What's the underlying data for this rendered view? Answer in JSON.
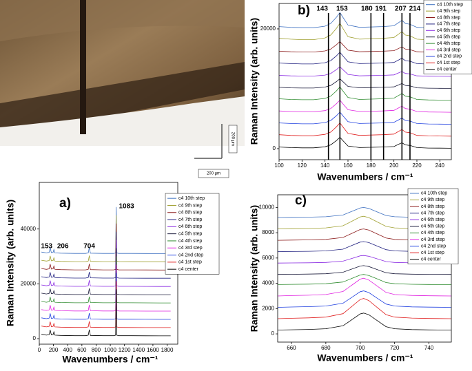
{
  "image": {
    "scale_labels": [
      "200 µm",
      "200 µm"
    ]
  },
  "chart_data": [
    {
      "type": "line",
      "panel_label": "a)",
      "xlabel": "Wavenumbers / cm⁻¹",
      "ylabel": "Raman Intensity (arb. units)",
      "xlim": [
        0,
        1950
      ],
      "ylim": [
        -2000,
        57000
      ],
      "xticks": [
        0,
        200,
        400,
        600,
        800,
        1000,
        1200,
        1400,
        1600,
        1800
      ],
      "yticks": [
        0,
        20000,
        40000
      ],
      "peak_labels": [
        153,
        206,
        704,
        1083
      ],
      "x": [
        30,
        100,
        140,
        153,
        170,
        195,
        206,
        220,
        300,
        500,
        650,
        690,
        704,
        720,
        900,
        1050,
        1075,
        1083,
        1090,
        1120,
        1300,
        1500,
        1700,
        1850
      ],
      "series": [
        {
          "name": "c4 10th step",
          "color": "#3c6fc0",
          "values": [
            31600,
            31300,
            31500,
            33200,
            31400,
            31500,
            32500,
            31300,
            31200,
            31100,
            31100,
            31300,
            33300,
            31200,
            31100,
            31100,
            31300,
            48000,
            31300,
            31100,
            31080,
            31060,
            31050,
            31050
          ]
        },
        {
          "name": "c4 9th step",
          "color": "#a0a030",
          "values": [
            28600,
            28300,
            28500,
            30200,
            28400,
            28500,
            29500,
            28300,
            28200,
            28100,
            28100,
            28300,
            30300,
            28200,
            28100,
            28100,
            28300,
            45000,
            28300,
            28100,
            28080,
            28060,
            28050,
            28050
          ]
        },
        {
          "name": "c4 8th step",
          "color": "#8b1a1a",
          "values": [
            25600,
            25300,
            25500,
            27200,
            25400,
            25500,
            26500,
            25300,
            25200,
            25100,
            25100,
            25300,
            27300,
            25200,
            25100,
            25100,
            25300,
            42000,
            25300,
            25100,
            25080,
            25060,
            25050,
            25050
          ]
        },
        {
          "name": "c4 7th step",
          "color": "#202080",
          "values": [
            22600,
            22300,
            22500,
            24200,
            22400,
            22500,
            23500,
            22300,
            22200,
            22100,
            22100,
            22300,
            24300,
            22200,
            22100,
            22100,
            22300,
            39000,
            22300,
            22100,
            22080,
            22060,
            22050,
            22050
          ]
        },
        {
          "name": "c4 6th step",
          "color": "#8a2be2",
          "values": [
            19600,
            19300,
            19500,
            21200,
            19400,
            19500,
            20500,
            19300,
            19200,
            19100,
            19100,
            19300,
            21300,
            19200,
            19100,
            19100,
            19300,
            36000,
            19300,
            19100,
            19080,
            19060,
            19050,
            19050
          ]
        },
        {
          "name": "c4 5th step",
          "color": "#1a1a3a",
          "values": [
            16600,
            16300,
            16500,
            18200,
            16400,
            16500,
            17500,
            16300,
            16200,
            16100,
            16100,
            16300,
            18300,
            16200,
            16100,
            16100,
            16300,
            33000,
            16300,
            16100,
            16080,
            16060,
            16050,
            16050
          ]
        },
        {
          "name": "c4 4th step",
          "color": "#2e8b2e",
          "values": [
            13600,
            13300,
            13500,
            15200,
            13400,
            13500,
            14500,
            13300,
            13200,
            13100,
            13100,
            13300,
            15300,
            13200,
            13100,
            13100,
            13300,
            30000,
            13300,
            13100,
            13080,
            13060,
            13050,
            13050
          ]
        },
        {
          "name": "c4 3rd step",
          "color": "#e020e0",
          "values": [
            10600,
            10300,
            10500,
            12200,
            10400,
            10500,
            11500,
            10300,
            10200,
            10100,
            10100,
            10300,
            12300,
            10200,
            10100,
            10100,
            10300,
            27000,
            10300,
            10100,
            10080,
            10060,
            10050,
            10050
          ]
        },
        {
          "name": "c4 2nd step",
          "color": "#2040e0",
          "values": [
            7600,
            7300,
            7500,
            9200,
            7400,
            7500,
            8500,
            7300,
            7200,
            7100,
            7100,
            7300,
            9300,
            7200,
            7100,
            7100,
            7300,
            24000,
            7300,
            7100,
            7080,
            7060,
            7050,
            7050
          ]
        },
        {
          "name": "c4 1st step",
          "color": "#e02020",
          "values": [
            4600,
            4300,
            4500,
            6200,
            4400,
            4500,
            5500,
            4300,
            4200,
            4100,
            4100,
            4300,
            6300,
            4200,
            4100,
            4100,
            4300,
            21000,
            4300,
            4100,
            4080,
            4060,
            4050,
            4050
          ]
        },
        {
          "name": "c4 center",
          "color": "#000000",
          "values": [
            1600,
            1300,
            1500,
            3200,
            1400,
            1500,
            2500,
            1300,
            1200,
            1100,
            1100,
            1300,
            3300,
            1200,
            1100,
            1100,
            1300,
            18000,
            1300,
            1100,
            1080,
            1060,
            1050,
            1050
          ]
        }
      ]
    },
    {
      "type": "line",
      "panel_label": "b)",
      "xlabel": "Wavenumbers / cm⁻¹",
      "ylabel": "Raman Intensity (arb. units)",
      "xlim": [
        100,
        250
      ],
      "ylim": [
        -1840,
        24250
      ],
      "xticks": [
        100,
        120,
        140,
        160,
        180,
        200,
        220,
        240
      ],
      "yticks": [
        0,
        20000
      ],
      "vlines": [
        143,
        153,
        180,
        191,
        207,
        214
      ],
      "x": [
        100,
        110,
        120,
        130,
        140,
        145,
        150,
        153,
        156,
        160,
        170,
        180,
        190,
        200,
        205,
        207,
        210,
        214,
        220,
        230,
        240,
        250
      ],
      "series": [
        {
          "name": "c4 10th step",
          "color": "#3c6fc0",
          "values": [
            20390,
            20260,
            20195,
            20195,
            20455,
            20910,
            21950,
            22730,
            21820,
            20650,
            20260,
            20325,
            20390,
            20520,
            21170,
            21430,
            20910,
            20780,
            20260,
            20156,
            20130,
            20104
          ]
        },
        {
          "name": "c4 9th step",
          "color": "#a0a030",
          "values": [
            18420,
            18280,
            18210,
            18210,
            18490,
            18980,
            20100,
            20940,
            19960,
            18700,
            18280,
            18350,
            18420,
            18560,
            19260,
            19540,
            18980,
            18840,
            18280,
            18168,
            18140,
            18112
          ]
        },
        {
          "name": "c4 8th step",
          "color": "#8b1a1a",
          "values": [
            16270,
            16180,
            16135,
            16135,
            16315,
            16630,
            17350,
            17890,
            17260,
            16450,
            16180,
            16225,
            16270,
            16360,
            16810,
            16990,
            16630,
            16540,
            16180,
            16108,
            16090,
            16072
          ]
        },
        {
          "name": "c4 7th step",
          "color": "#202080",
          "values": [
            14300,
            14200,
            14150,
            14150,
            14350,
            14700,
            15500,
            16100,
            15400,
            14500,
            14200,
            14250,
            14300,
            14400,
            14900,
            15100,
            14700,
            14600,
            14200,
            14120,
            14100,
            14080
          ]
        },
        {
          "name": "c4 6th step",
          "color": "#8a2be2",
          "values": [
            12240,
            12160,
            12120,
            12120,
            12280,
            12560,
            13200,
            13680,
            13120,
            12400,
            12160,
            12200,
            12240,
            12320,
            12720,
            12880,
            12560,
            12480,
            12160,
            12096,
            12080,
            12064
          ]
        },
        {
          "name": "c4 5th step",
          "color": "#1a1a3a",
          "values": [
            10240,
            10160,
            10120,
            10120,
            10280,
            10560,
            11200,
            11680,
            11120,
            10400,
            10160,
            10200,
            10240,
            10320,
            10720,
            10880,
            10560,
            10480,
            10160,
            10096,
            10080,
            10064
          ]
        },
        {
          "name": "c4 4th step",
          "color": "#2e8b2e",
          "values": [
            8330,
            8220,
            8165,
            8165,
            8385,
            8770,
            9650,
            10310,
            9540,
            8550,
            8220,
            8275,
            8330,
            8440,
            8990,
            9210,
            8770,
            8660,
            8220,
            8132,
            8110,
            8088
          ]
        },
        {
          "name": "c4 3rd step",
          "color": "#e020e0",
          "values": [
            6300,
            6200,
            6150,
            6150,
            6350,
            6700,
            7500,
            8100,
            7400,
            6500,
            6200,
            6250,
            6300,
            6400,
            6900,
            7100,
            6700,
            6600,
            6200,
            6120,
            6100,
            6080
          ]
        },
        {
          "name": "c4 2nd step",
          "color": "#2040e0",
          "values": [
            4300,
            4200,
            4150,
            4150,
            4350,
            4700,
            5500,
            6100,
            5400,
            4500,
            4200,
            4250,
            4300,
            4400,
            4900,
            5100,
            4700,
            4600,
            4200,
            4120,
            4100,
            4080
          ]
        },
        {
          "name": "c4 1st step",
          "color": "#e02020",
          "values": [
            2330,
            2220,
            2165,
            2165,
            2385,
            2770,
            3650,
            4310,
            3540,
            2550,
            2220,
            2275,
            2330,
            2440,
            2990,
            3210,
            2770,
            2660,
            2220,
            2132,
            2110,
            2088
          ]
        },
        {
          "name": "c4 center",
          "color": "#000000",
          "values": [
            270,
            180,
            135,
            135,
            315,
            630,
            1350,
            1890,
            1260,
            450,
            180,
            225,
            270,
            360,
            810,
            990,
            630,
            540,
            180,
            108,
            90,
            72
          ]
        }
      ]
    },
    {
      "type": "line",
      "panel_label": "c)",
      "xlabel": "Wavenumbers / cm⁻¹",
      "ylabel": "Raman Intensity (arb. units)",
      "xlim": [
        652,
        753
      ],
      "ylim": [
        -650,
        11000
      ],
      "xticks": [
        660,
        680,
        700,
        720,
        740
      ],
      "yticks": [
        0,
        2000,
        4000,
        6000,
        8000,
        10000
      ],
      "x": [
        652,
        660,
        670,
        680,
        690,
        695,
        700,
        702,
        705,
        710,
        715,
        720,
        730,
        740,
        753
      ],
      "series": [
        {
          "name": "c4 10th step",
          "color": "#3c6fc0",
          "values": [
            9200,
            9216,
            9232,
            9264,
            9400,
            9680,
            9960,
            10000,
            9920,
            9640,
            9360,
            9264,
            9224,
            9208,
            9200
          ]
        },
        {
          "name": "c4 9th step",
          "color": "#a0a030",
          "values": [
            8300,
            8320,
            8340,
            8380,
            8550,
            8900,
            9250,
            9300,
            9200,
            8850,
            8500,
            8380,
            8330,
            8310,
            8300
          ]
        },
        {
          "name": "c4 8th step",
          "color": "#8b1a1a",
          "values": [
            7400,
            7418,
            7436,
            7472,
            7625,
            7940,
            8255,
            8300,
            8210,
            7895,
            7580,
            7472,
            7427,
            7409,
            7400
          ]
        },
        {
          "name": "c4 7th step",
          "color": "#202080",
          "values": [
            6500,
            6516,
            6532,
            6564,
            6700,
            6980,
            7260,
            7300,
            7220,
            6940,
            6660,
            6564,
            6524,
            6508,
            6500
          ]
        },
        {
          "name": "c4 6th step",
          "color": "#8a2be2",
          "values": [
            5600,
            5612,
            5624,
            5648,
            5750,
            5960,
            6170,
            6200,
            6140,
            5930,
            5720,
            5648,
            5618,
            5606,
            5600
          ]
        },
        {
          "name": "c4 5th step",
          "color": "#1a1a3a",
          "values": [
            4700,
            4714,
            4728,
            4756,
            4875,
            5120,
            5365,
            5400,
            5330,
            5085,
            4840,
            4756,
            4721,
            4707,
            4700
          ]
        },
        {
          "name": "c4 4th step",
          "color": "#2e8b2e",
          "values": [
            3900,
            3916,
            3932,
            3964,
            4100,
            4380,
            4660,
            4700,
            4620,
            4340,
            4060,
            3964,
            3924,
            3908,
            3900
          ]
        },
        {
          "name": "c4 3rd step",
          "color": "#e020e0",
          "values": [
            3000,
            3028,
            3056,
            3112,
            3350,
            3840,
            4330,
            4400,
            4260,
            3770,
            3280,
            3112,
            3042,
            3014,
            3000
          ]
        },
        {
          "name": "c4 2nd step",
          "color": "#2040e0",
          "values": [
            2100,
            2126,
            2152,
            2204,
            2425,
            2880,
            3335,
            3400,
            3270,
            2815,
            2360,
            2204,
            2139,
            2113,
            2100
          ]
        },
        {
          "name": "c4 1st step",
          "color": "#e02020",
          "values": [
            1200,
            1232,
            1264,
            1328,
            1600,
            2160,
            2720,
            2800,
            2640,
            2080,
            1520,
            1328,
            1248,
            1216,
            1200
          ]
        },
        {
          "name": "c4 center",
          "color": "#000000",
          "values": [
            300,
            327,
            354,
            408,
            638,
            1110,
            1583,
            1650,
            1515,
            1043,
            570,
            408,
            341,
            314,
            300
          ]
        }
      ]
    }
  ]
}
